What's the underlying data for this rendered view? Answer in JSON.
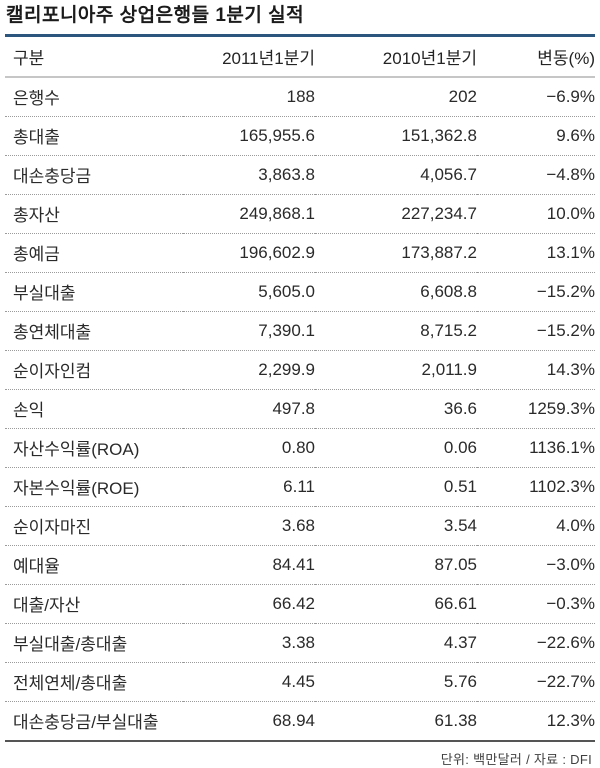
{
  "chart_data": {
    "type": "table",
    "title": "캘리포니아주 상업은행들 1분기 실적",
    "columns": [
      "구분",
      "2011년1분기",
      "2010년1분기",
      "변동(%)"
    ],
    "rows": [
      [
        "은행수",
        "188",
        "202",
        "−6.9%"
      ],
      [
        "총대출",
        "165,955.6",
        "151,362.8",
        "9.6%"
      ],
      [
        "대손충당금",
        "3,863.8",
        "4,056.7",
        "−4.8%"
      ],
      [
        "총자산",
        "249,868.1",
        "227,234.7",
        "10.0%"
      ],
      [
        "총예금",
        "196,602.9",
        "173,887.2",
        "13.1%"
      ],
      [
        "부실대출",
        "5,605.0",
        "6,608.8",
        "−15.2%"
      ],
      [
        "총연체대출",
        "7,390.1",
        "8,715.2",
        "−15.2%"
      ],
      [
        "순이자인컴",
        "2,299.9",
        "2,011.9",
        "14.3%"
      ],
      [
        "손익",
        "497.8",
        "36.6",
        "1259.3%"
      ],
      [
        "자산수익률(ROA)",
        "0.80",
        "0.06",
        "1136.1%"
      ],
      [
        "자본수익률(ROE)",
        "6.11",
        "0.51",
        "1102.3%"
      ],
      [
        "순이자마진",
        "3.68",
        "3.54",
        "4.0%"
      ],
      [
        "예대율",
        "84.41",
        "87.05",
        "−3.0%"
      ],
      [
        "대출/자산",
        "66.42",
        "66.61",
        "−0.3%"
      ],
      [
        "부실대출/총대출",
        "3.38",
        "4.37",
        "−22.6%"
      ],
      [
        "전체연체/총대출",
        "4.45",
        "5.76",
        "−22.7%"
      ],
      [
        "대손충당금/부실대출",
        "68.94",
        "61.38",
        "12.3%"
      ]
    ],
    "footnote": "단위: 백만달러 / 자료 : DFI"
  },
  "colors": {
    "accent": "#2d567e",
    "header_border": "#c6c6c6",
    "dotted_line": "#9b9b9b",
    "bottom_border": "#555555"
  }
}
